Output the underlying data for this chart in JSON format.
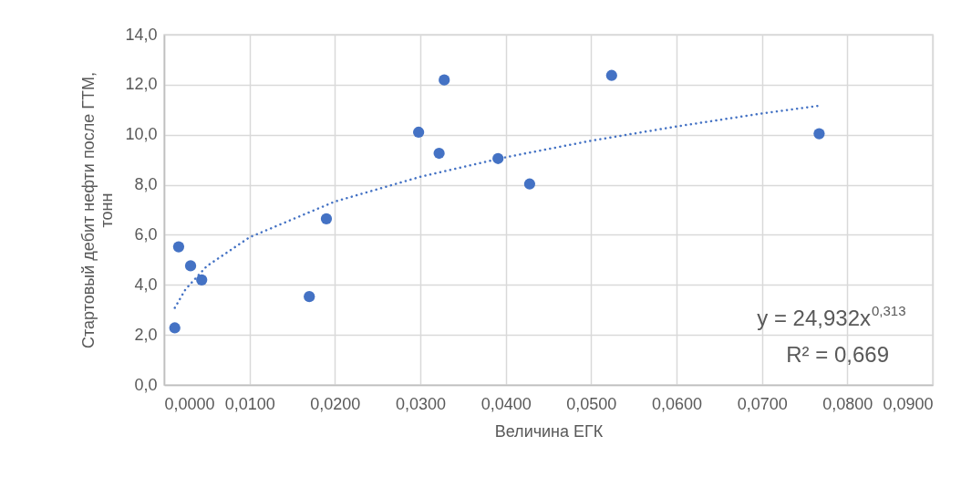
{
  "chart_data": {
    "type": "scatter",
    "xlabel": "Величина ЕГК",
    "ylabel": "Стартовый дебит нефти после ГТМ, тонн",
    "series": [
      {
        "type": "scatter",
        "color": "#4472c4",
        "marker": "circle",
        "x": [
          0.00125,
          0.0017,
          0.0031,
          0.0044,
          0.017,
          0.019,
          0.0298,
          0.0322,
          0.0328,
          0.0391,
          0.0428,
          0.0524,
          0.0767
        ],
        "values": [
          2.28,
          5.52,
          4.76,
          4.2,
          3.53,
          6.64,
          10.1,
          9.26,
          12.19,
          9.05,
          8.03,
          12.37,
          10.04
        ]
      },
      {
        "type": "line",
        "color": "#4472c4",
        "line_style": "dotted",
        "x": [
          0.00125,
          0.0025,
          0.005,
          0.01,
          0.02,
          0.03,
          0.04,
          0.05,
          0.06,
          0.07,
          0.0767
        ],
        "values": [
          3.08,
          3.82,
          4.75,
          5.9,
          7.33,
          8.32,
          9.1,
          9.76,
          10.33,
          10.85,
          11.16
        ]
      }
    ],
    "xlim": [
      0,
      0.09
    ],
    "xticks": [
      {
        "value": 0,
        "label": "0,0000"
      },
      {
        "value": 0.01,
        "label": "0,0100"
      },
      {
        "value": 0.02,
        "label": "0,0200"
      },
      {
        "value": 0.03,
        "label": "0,0300"
      },
      {
        "value": 0.04,
        "label": "0,0400"
      },
      {
        "value": 0.05,
        "label": "0,0500"
      },
      {
        "value": 0.06,
        "label": "0,0600"
      },
      {
        "value": 0.07,
        "label": "0,0700"
      },
      {
        "value": 0.08,
        "label": "0,0800"
      },
      {
        "value": 0.09,
        "label": "0,0900"
      }
    ],
    "ylim": [
      0,
      14
    ],
    "yticks": [
      {
        "value": 0,
        "label": "0,0"
      },
      {
        "value": 2,
        "label": "2,0"
      },
      {
        "value": 4,
        "label": "4,0"
      },
      {
        "value": 6,
        "label": "6,0"
      },
      {
        "value": 8,
        "label": "8,0"
      },
      {
        "value": 10,
        "label": "10,0"
      },
      {
        "value": 12,
        "label": "12,0"
      },
      {
        "value": 14,
        "label": "14,0"
      }
    ],
    "grid": true,
    "annotations": [
      "y = 24,932x$^{0,313}$",
      "R² = 0,669"
    ]
  }
}
